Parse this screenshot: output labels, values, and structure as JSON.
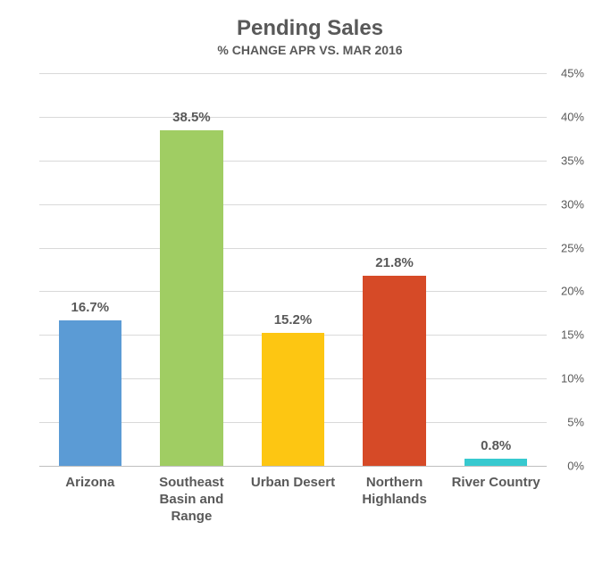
{
  "chart": {
    "type": "bar",
    "title": "Pending Sales",
    "title_fontsize": 24,
    "subtitle": "% CHANGE APR VS. MAR 2016",
    "subtitle_fontsize": 14,
    "title_color": "#595959",
    "background_color": "#ffffff",
    "grid_color": "#d9d9d9",
    "axis_line_color": "#bfbfbf",
    "tick_font_color": "#595959",
    "tick_fontsize": 13,
    "xlabel_fontsize": 15,
    "data_label_fontsize": 15,
    "bar_width": 0.62,
    "ylim": [
      0,
      45
    ],
    "ytick_step": 5,
    "ytick_suffix": "%",
    "yticks": [
      "0%",
      "5%",
      "10%",
      "15%",
      "20%",
      "25%",
      "30%",
      "35%",
      "40%",
      "45%"
    ],
    "categories": [
      "Arizona",
      "Southeast Basin and Range",
      "Urban Desert",
      "Northern Highlands",
      "River Country"
    ],
    "values": [
      16.7,
      38.5,
      15.2,
      21.8,
      0.8
    ],
    "value_labels": [
      "16.7%",
      "38.5%",
      "15.2%",
      "21.8%",
      "0.8%"
    ],
    "bar_colors": [
      "#5b9bd5",
      "#a0cd63",
      "#fdc612",
      "#d64a27",
      "#37c9cf"
    ]
  }
}
